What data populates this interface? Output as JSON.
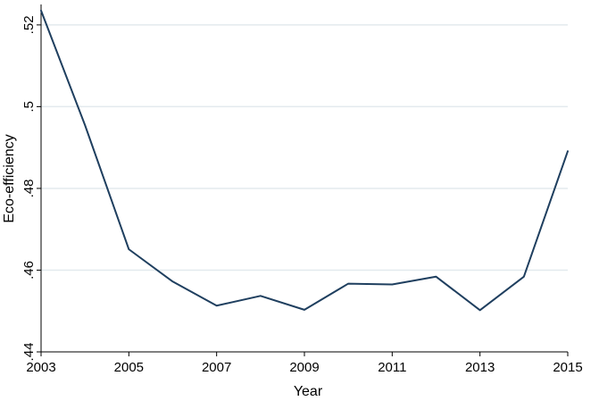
{
  "chart_data": {
    "type": "line",
    "title": "",
    "xlabel": "Year",
    "ylabel": "Eco-efficiency",
    "x": [
      2003,
      2004,
      2005,
      2006,
      2007,
      2008,
      2009,
      2010,
      2011,
      2012,
      2013,
      2014,
      2015
    ],
    "series": [
      {
        "values": [
          0.5235,
          0.4955,
          0.4651,
          0.4572,
          0.4513,
          0.4537,
          0.4503,
          0.4567,
          0.4565,
          0.4584,
          0.4502,
          0.4584,
          0.4891
        ]
      }
    ],
    "xlim": [
      2003,
      2015
    ],
    "ylim": [
      0.44,
      0.525
    ],
    "x_ticks": [
      {
        "value": 2003,
        "label": "2003"
      },
      {
        "value": 2005,
        "label": "2005"
      },
      {
        "value": 2007,
        "label": "2007"
      },
      {
        "value": 2009,
        "label": "2009"
      },
      {
        "value": 2011,
        "label": "2011"
      },
      {
        "value": 2013,
        "label": "2013"
      },
      {
        "value": 2015,
        "label": "2015"
      }
    ],
    "y_ticks": [
      {
        "value": 0.44,
        "label": ".44"
      },
      {
        "value": 0.46,
        "label": ".46"
      },
      {
        "value": 0.48,
        "label": ".48"
      },
      {
        "value": 0.5,
        "label": ".5"
      },
      {
        "value": 0.52,
        "label": ".52"
      }
    ],
    "grid": true,
    "colors": {
      "line": "#1f3f5f",
      "grid": "#e3eaee",
      "axis": "#000000"
    }
  }
}
